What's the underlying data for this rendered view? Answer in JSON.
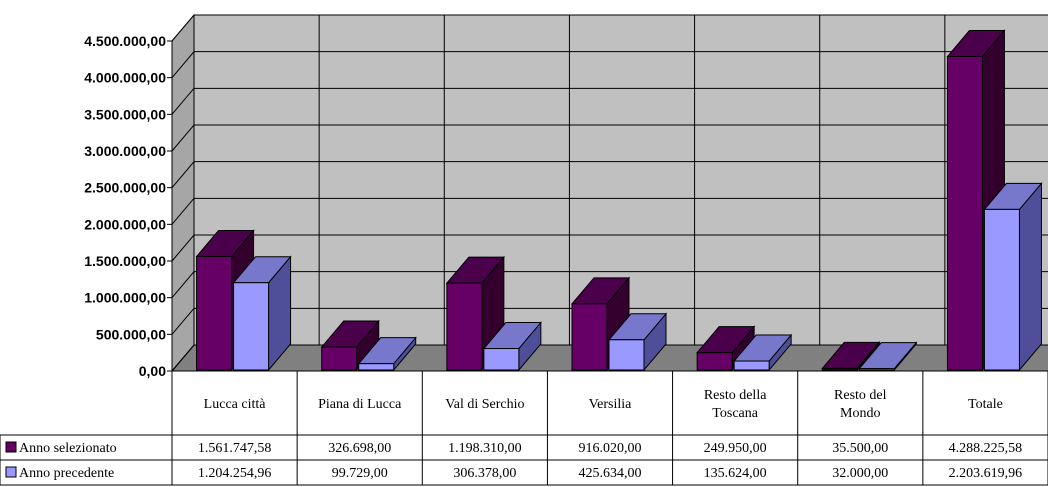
{
  "chart_data": {
    "type": "bar",
    "categories": [
      "Lucca città",
      "Piana di Lucca",
      "Val di Serchio",
      "Versilia",
      "Resto della Toscana",
      "Resto del Mondo",
      "Totale"
    ],
    "category_lines": [
      [
        "Lucca città"
      ],
      [
        "Piana di Lucca"
      ],
      [
        "Val di Serchio"
      ],
      [
        "Versilia"
      ],
      [
        "Resto  della",
        "Toscana"
      ],
      [
        "Resto del",
        "Mondo"
      ],
      [
        "Totale"
      ]
    ],
    "series": [
      {
        "name": "Anno selezionato",
        "values": [
          1561747.58,
          326698.0,
          1198310.0,
          916020.0,
          249950.0,
          35500.0,
          4288225.58
        ],
        "labels": [
          "1.561.747,58",
          "326.698,00",
          "1.198.310,00",
          "916.020,00",
          "249.950,00",
          "35.500,00",
          "4.288.225,58"
        ],
        "color": "#660066",
        "top_color": "#4a004a",
        "side_color": "#33002e"
      },
      {
        "name": "Anno precedente",
        "values": [
          1204254.96,
          99729.0,
          306378.0,
          425634.0,
          135624.0,
          32000.0,
          2203619.96
        ],
        "labels": [
          "1.204.254,96",
          "99.729,00",
          "306.378,00",
          "425.634,00",
          "135.624,00",
          "32.000,00",
          "2.203.619,96"
        ],
        "color": "#9999ff",
        "top_color": "#7777cc",
        "side_color": "#4f4f99"
      }
    ],
    "ylim": [
      0,
      4500000
    ],
    "yticks": [
      0,
      500000,
      1000000,
      1500000,
      2000000,
      2500000,
      3000000,
      3500000,
      4000000,
      4500000
    ],
    "ytick_labels": [
      "0,00",
      "500.000,00",
      "1.000.000,00",
      "1.500.000,00",
      "2.000.000,00",
      "2.500.000,00",
      "3.000.000,00",
      "3.500.000,00",
      "4.000.000,00",
      "4.500.000,00"
    ],
    "grid": true,
    "legend": "data-table",
    "colors": {
      "wall": "#c0c0c0",
      "floor": "#808080",
      "grid": "#000000"
    }
  }
}
